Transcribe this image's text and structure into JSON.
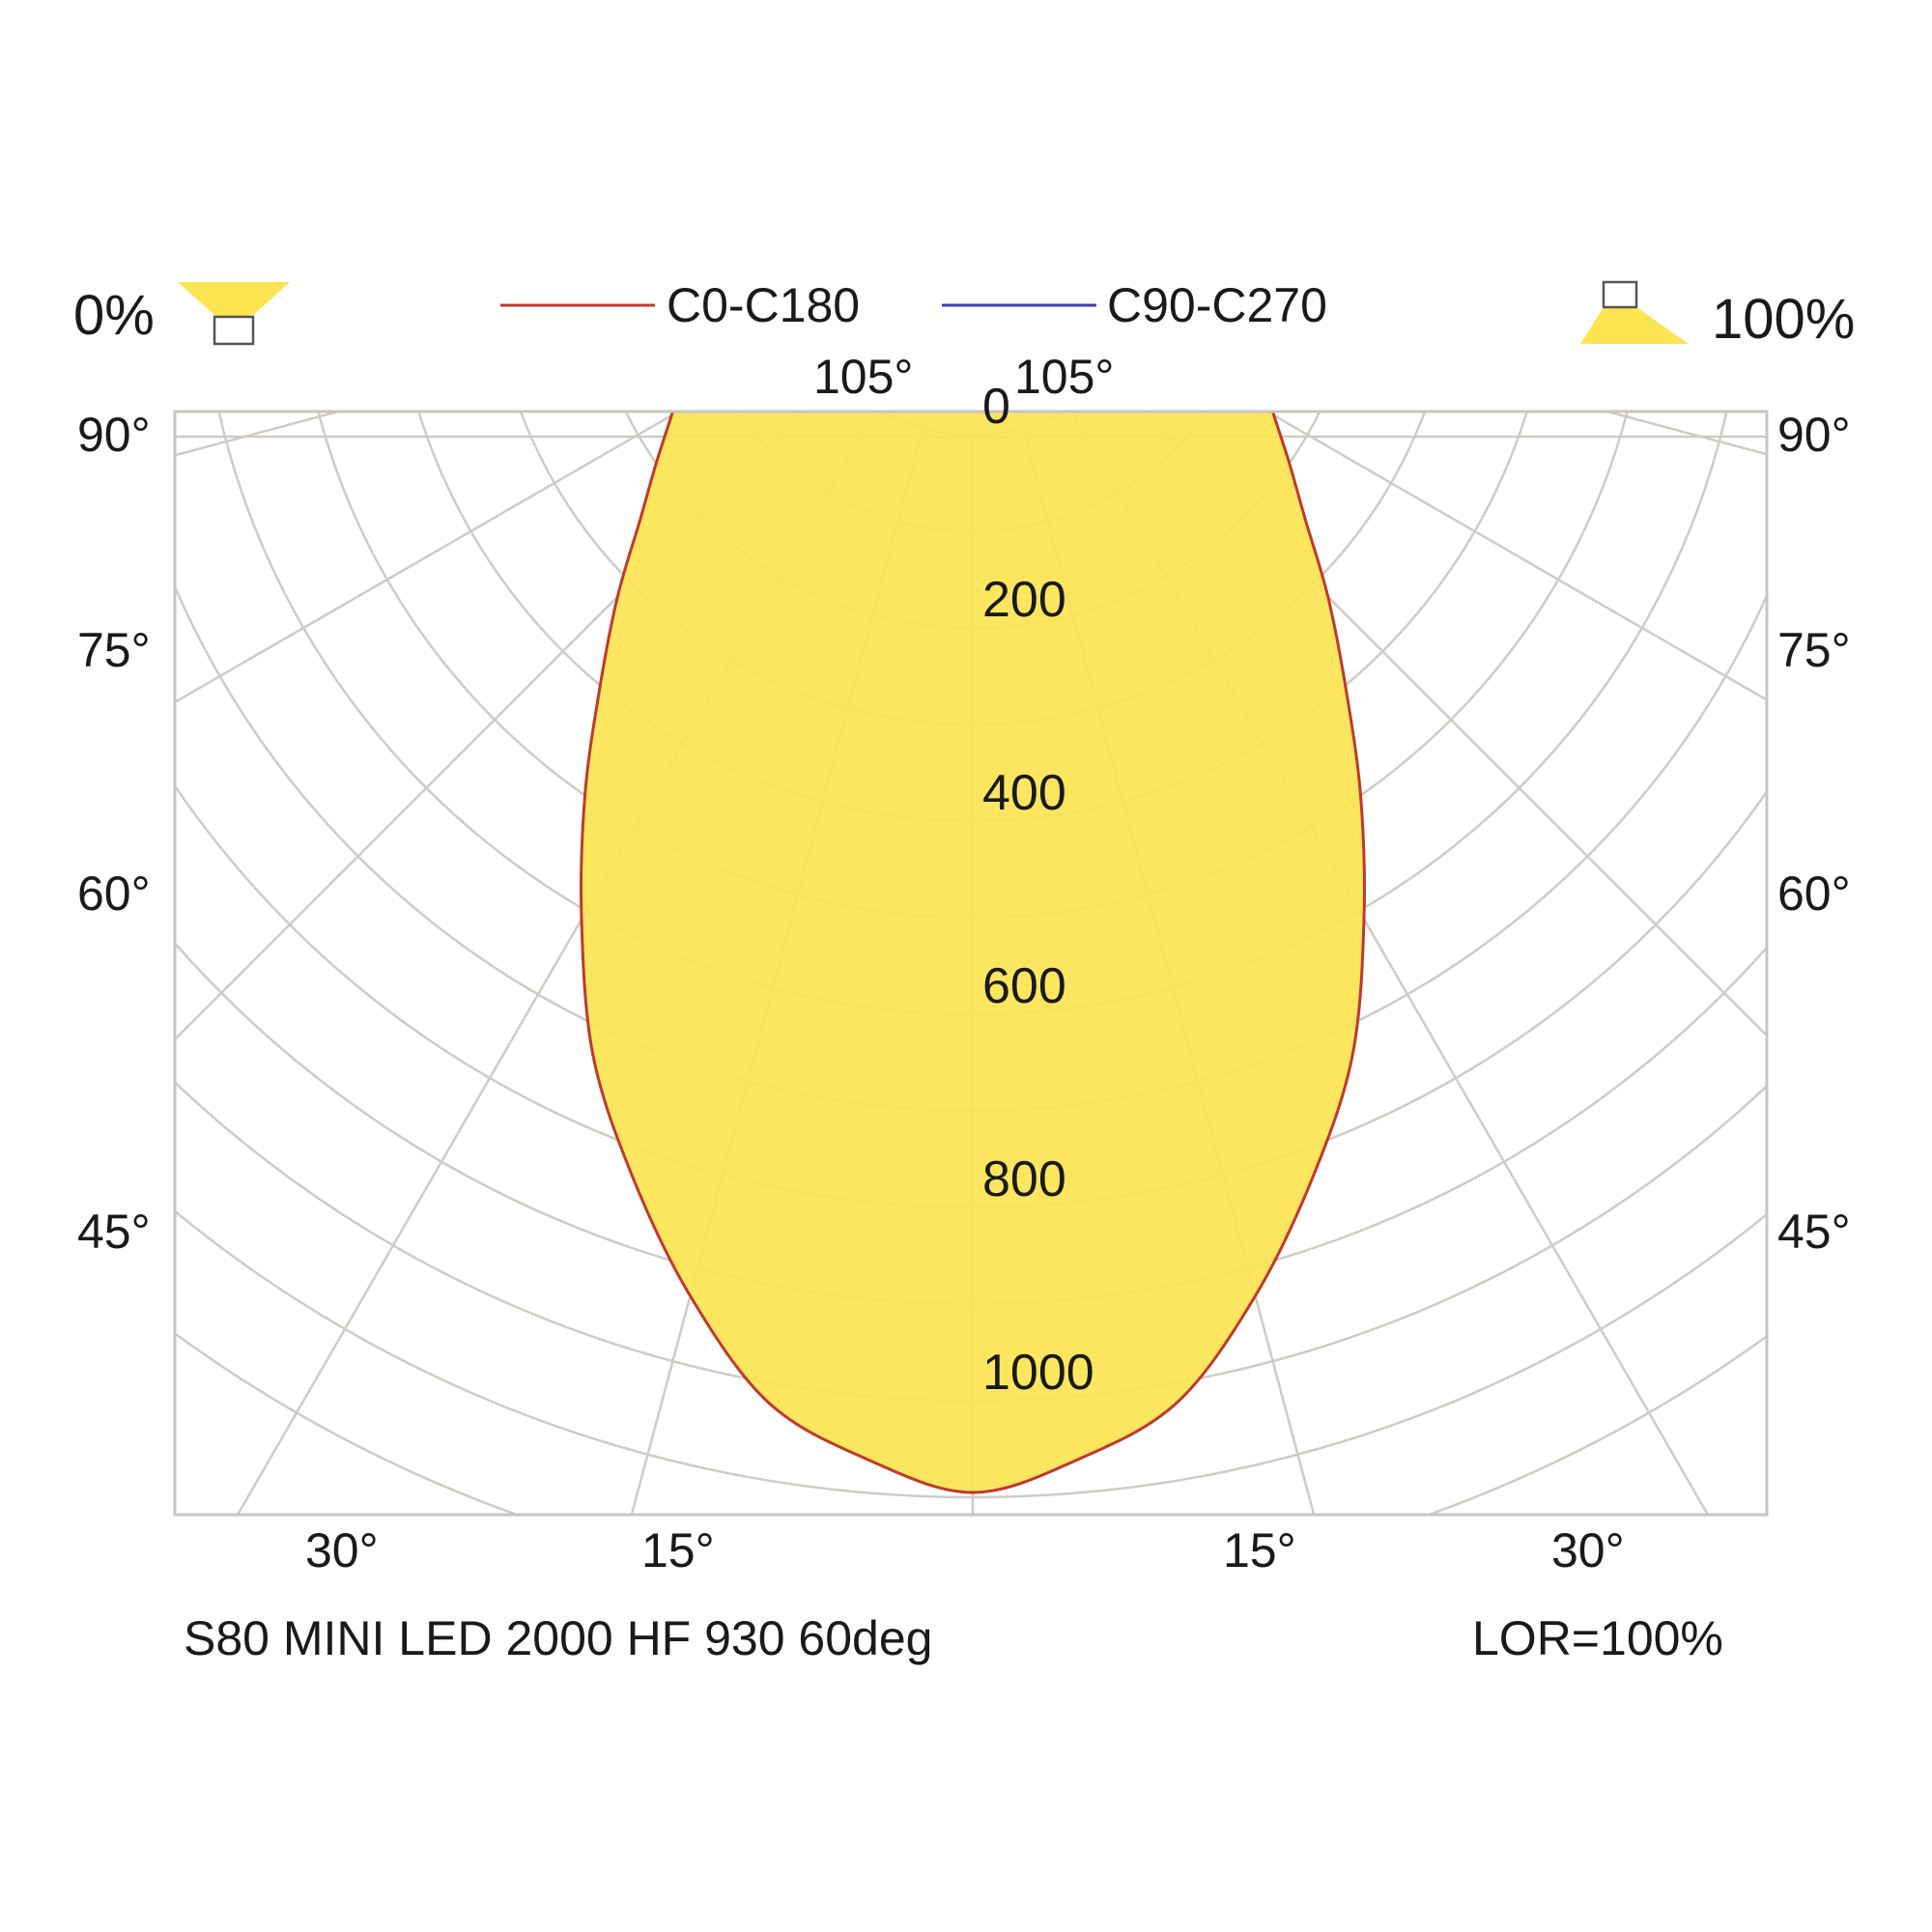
{
  "header": {
    "downward_label": "0%",
    "upward_label": "100%"
  },
  "footer": {
    "product_name": "S80 MINI LED 2000 HF 930 60deg",
    "lor": "LOR=100%"
  },
  "colors": {
    "fill": "#fde451",
    "c0_c180": "#c0392b",
    "c90_c270": "#3b3bb0",
    "grid": "#cfcbc6",
    "frame": "#c9c6c0",
    "text": "#1a1a1a"
  },
  "icons": {
    "downward": "downlight-icon",
    "upward": "uplight-icon"
  },
  "chart_data": {
    "type": "polar",
    "unit": "cd/klm",
    "legend": [
      {
        "name": "C0-C180",
        "color": "#c0392b"
      },
      {
        "name": "C90-C270",
        "color": "#3b3bb0"
      }
    ],
    "radial_ticks": [
      0,
      200,
      400,
      600,
      800,
      1000
    ],
    "radial_tick_labels": [
      "0",
      "200",
      "400",
      "600",
      "800",
      "1000"
    ],
    "radial_max": 1200,
    "angle_labels": {
      "top": [
        "105°",
        "105°"
      ],
      "left": [
        "90°",
        "75°",
        "60°",
        "45°"
      ],
      "right": [
        "90°",
        "75°",
        "60°",
        "45°"
      ],
      "bottom": [
        "30°",
        "15°",
        "15°",
        "30°"
      ]
    },
    "grid": true,
    "series": [
      {
        "name": "C0-C180",
        "angles_deg": [
          0,
          5,
          10,
          15,
          20,
          25,
          30,
          35,
          40,
          45,
          50,
          55,
          60,
          65,
          70,
          75,
          80,
          85,
          90
        ],
        "values": [
          1095,
          1065,
          1020,
          930,
          830,
          730,
          610,
          500,
          400,
          320,
          250,
          200,
          160,
          130,
          110,
          90,
          70,
          45,
          20
        ]
      }
    ]
  }
}
